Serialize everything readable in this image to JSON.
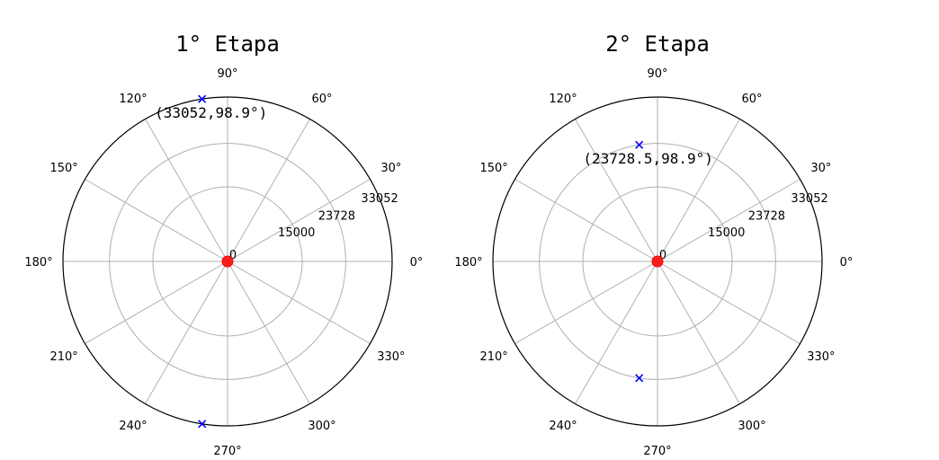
{
  "chart_data": [
    {
      "type": "scatter",
      "projection": "polar",
      "title": "1° Etapa",
      "theta_ticks": [
        "0°",
        "30°",
        "60°",
        "90°",
        "120°",
        "150°",
        "180°",
        "210°",
        "240°",
        "270°",
        "300°",
        "330°"
      ],
      "r_ticks": [
        0,
        15000,
        23728,
        33052
      ],
      "r_tick_labels": [
        "0",
        "15000",
        "23728",
        "33052"
      ],
      "rlim": [
        0,
        33052
      ],
      "grid": true,
      "series": [
        {
          "marker": "x",
          "color": "#0000ff",
          "points": [
            {
              "r": 33052,
              "theta": 98.9
            },
            {
              "r": 33052,
              "theta": 261.1
            }
          ]
        },
        {
          "marker": "circle",
          "color": "#ff0000",
          "points": [
            {
              "r": 0,
              "theta": 0
            }
          ]
        }
      ],
      "annotation": {
        "text": "(33052,98.9°)",
        "r": 33052,
        "theta": 98.9
      }
    },
    {
      "type": "scatter",
      "projection": "polar",
      "title": "2° Etapa",
      "theta_ticks": [
        "0°",
        "30°",
        "60°",
        "90°",
        "120°",
        "150°",
        "180°",
        "210°",
        "240°",
        "270°",
        "300°",
        "330°"
      ],
      "r_ticks": [
        0,
        15000,
        23728,
        33052
      ],
      "r_tick_labels": [
        "0",
        "15000",
        "23728",
        "33052"
      ],
      "rlim": [
        0,
        33052
      ],
      "grid": true,
      "series": [
        {
          "marker": "x",
          "color": "#0000ff",
          "points": [
            {
              "r": 23728.5,
              "theta": 98.9
            },
            {
              "r": 23728.5,
              "theta": 261.1
            }
          ]
        },
        {
          "marker": "circle",
          "color": "#ff0000",
          "points": [
            {
              "r": 0,
              "theta": 0
            }
          ]
        }
      ],
      "annotation": {
        "text": "(23728.5,98.9°)",
        "r": 23728.5,
        "theta": 98.9
      }
    }
  ]
}
